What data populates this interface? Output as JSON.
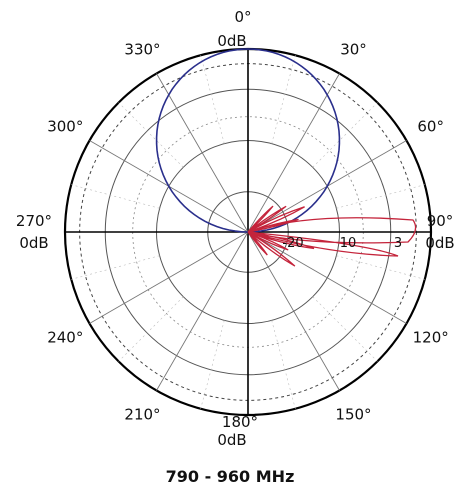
{
  "chart_data": {
    "type": "polar",
    "title": "790 - 960 MHz",
    "angle_labels": [
      "0°",
      "30°",
      "60°",
      "90°",
      "120°",
      "150°",
      "180°",
      "210°",
      "240°",
      "270°",
      "300°",
      "330°"
    ],
    "cardinal_db_labels": {
      "top": "0dB",
      "right": "0dB",
      "bottom": "0dB",
      "left": "0dB"
    },
    "radial_scale_db": [
      0,
      -3,
      -10,
      -20
    ],
    "radial_tick_labels": [
      "-20",
      "10",
      "3"
    ],
    "series": [
      {
        "color": "#2a2f8c",
        "description_type": "horizontal_pattern",
        "points": [
          [
            0,
            0
          ],
          [
            30,
            -1.2
          ],
          [
            60,
            -4.8
          ],
          [
            90,
            -40
          ],
          [
            270,
            -40
          ],
          [
            300,
            -4.8
          ],
          [
            330,
            -1.2
          ],
          [
            360,
            0
          ]
        ]
      },
      {
        "color": "#c4243b",
        "description_type": "vertical_pattern",
        "points": [
          [
            90,
            0
          ],
          [
            98,
            -6
          ],
          [
            104,
            -25
          ],
          [
            110,
            -16
          ],
          [
            118,
            -30
          ],
          [
            130,
            -22
          ],
          [
            145,
            -34
          ],
          [
            75,
            -14
          ],
          [
            62,
            -22
          ],
          [
            55,
            -30
          ],
          [
            45,
            -33
          ]
        ]
      }
    ],
    "grid": true
  }
}
